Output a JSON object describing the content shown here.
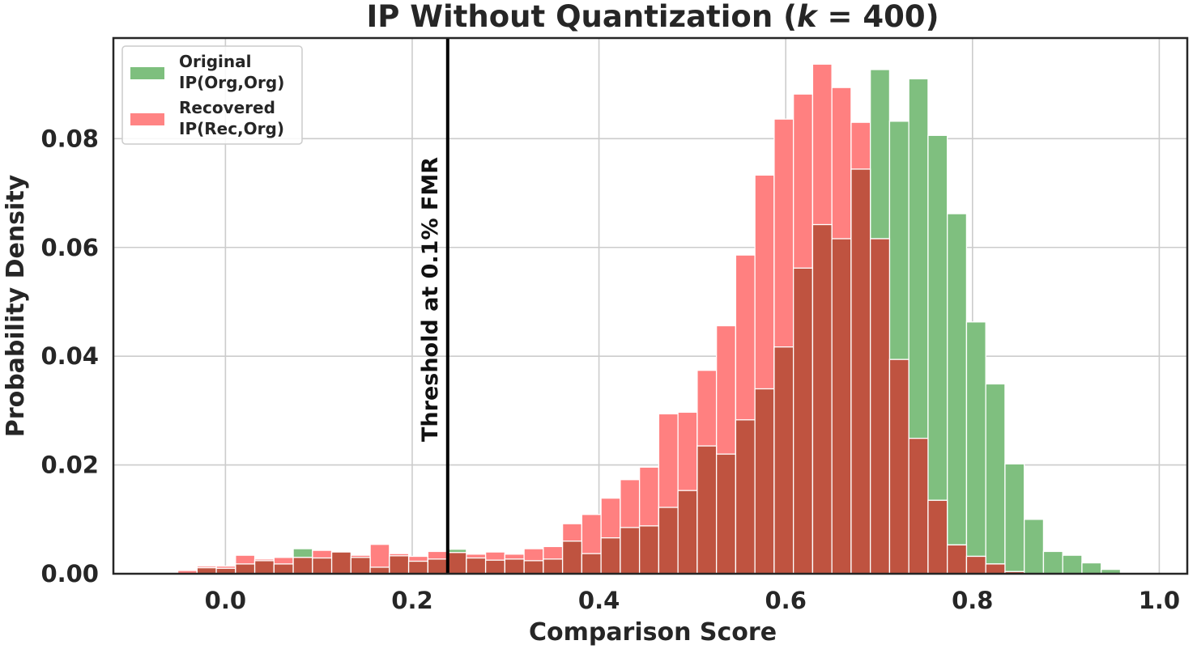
{
  "chart_data": {
    "type": "bar",
    "title_main": "IP Without Quantization (",
    "title_k": "k",
    "title_eq": " = 400)",
    "xlabel": "Comparison Score",
    "ylabel": "Probability Density",
    "xlim": [
      -0.12,
      1.03
    ],
    "ylim": [
      0.0,
      0.0985
    ],
    "xticks": [
      0.0,
      0.2,
      0.4,
      0.6,
      0.8,
      1.0
    ],
    "xtick_labels": [
      "0.0",
      "0.2",
      "0.4",
      "0.6",
      "0.8",
      "1.0"
    ],
    "yticks": [
      0.0,
      0.02,
      0.04,
      0.06,
      0.08
    ],
    "ytick_labels": [
      "0.00",
      "0.02",
      "0.04",
      "0.06",
      "0.08"
    ],
    "grid": true,
    "legend_position": "top-left",
    "bin_start": -0.051,
    "bin_width": 0.0206,
    "threshold": {
      "x": 0.238,
      "label": "Threshold at 0.1% FMR",
      "color": "#000000"
    },
    "series": [
      {
        "name_line1": "Original",
        "name_line2": "IP(Org,Org)",
        "color": "#4ca64c",
        "values": [
          0.0,
          0.0011,
          0.001,
          0.0018,
          0.0024,
          0.0018,
          0.0046,
          0.0029,
          0.004,
          0.003,
          0.0012,
          0.0033,
          0.0023,
          0.0027,
          0.0045,
          0.0029,
          0.0025,
          0.0027,
          0.0024,
          0.0027,
          0.006,
          0.0037,
          0.0066,
          0.0085,
          0.0088,
          0.0122,
          0.0153,
          0.0235,
          0.022,
          0.0283,
          0.034,
          0.0417,
          0.0562,
          0.0642,
          0.0616,
          0.0744,
          0.0927,
          0.0832,
          0.091,
          0.0806,
          0.0662,
          0.0463,
          0.0349,
          0.0202,
          0.01,
          0.0041,
          0.0034,
          0.002,
          0.0008
        ]
      },
      {
        "name_line1": "Recovered",
        "name_line2": "IP(Rec,Org)",
        "color": "#ff5555",
        "values": [
          0.0006,
          0.0014,
          0.0014,
          0.0034,
          0.0027,
          0.003,
          0.003,
          0.0043,
          0.004,
          0.0034,
          0.0054,
          0.0037,
          0.0032,
          0.0041,
          0.0039,
          0.0036,
          0.004,
          0.0036,
          0.0046,
          0.005,
          0.0092,
          0.0109,
          0.0139,
          0.0173,
          0.0196,
          0.0294,
          0.0297,
          0.0374,
          0.0456,
          0.0586,
          0.0733,
          0.0836,
          0.0882,
          0.0937,
          0.0894,
          0.083,
          0.0616,
          0.0394,
          0.0249,
          0.0135,
          0.0053,
          0.0032,
          0.0018,
          0.0004,
          0.0,
          0.0,
          0.0,
          0.0,
          0.0
        ]
      }
    ]
  }
}
